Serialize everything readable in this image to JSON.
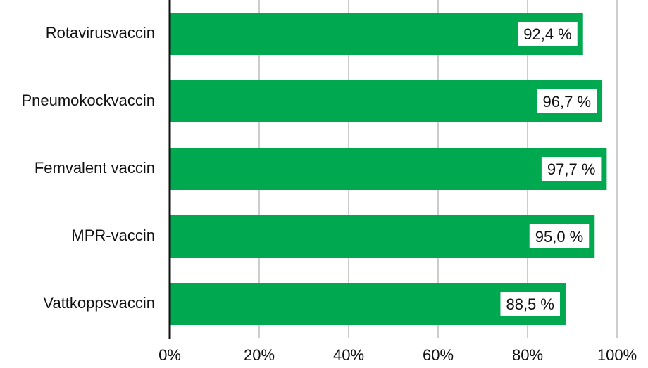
{
  "chart_data": {
    "type": "hbar",
    "categories": [
      "Rotavirusvaccin",
      "Pneumokockvaccin",
      "Femvalent vaccin",
      "MPR-vaccin",
      "Vattkoppsvaccin"
    ],
    "values": [
      92.4,
      96.7,
      97.7,
      95.0,
      88.5
    ],
    "value_labels": [
      "92,4 %",
      "96,7 %",
      "97,7 %",
      "95,0 %",
      "88,5 %"
    ],
    "color": "#00a94f",
    "xlim": [
      0,
      100
    ],
    "xticks": [
      {
        "value": 0,
        "label": "0%"
      },
      {
        "value": 20,
        "label": "20%"
      },
      {
        "value": 40,
        "label": "40%"
      },
      {
        "value": 60,
        "label": "60%"
      },
      {
        "value": 80,
        "label": "80%"
      },
      {
        "value": 100,
        "label": "100%"
      }
    ],
    "grid": true
  }
}
